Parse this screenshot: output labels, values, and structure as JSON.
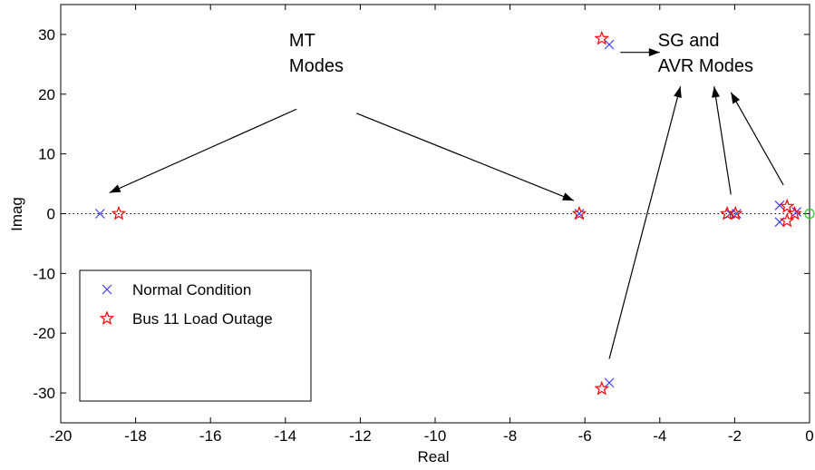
{
  "chart_data": {
    "type": "scatter",
    "title": "",
    "xlabel": "Real",
    "ylabel": "Imag",
    "xlim": [
      -20,
      0
    ],
    "ylim": [
      -35,
      35
    ],
    "xticks": [
      -20,
      -18,
      -16,
      -14,
      -12,
      -10,
      -8,
      -6,
      -4,
      -2,
      0
    ],
    "yticks": [
      -30,
      -20,
      -10,
      0,
      10,
      20,
      30
    ],
    "grid": false,
    "zero_line": "dotted",
    "legend": {
      "placement": "lower-left"
    },
    "series": [
      {
        "name": "Normal Condition",
        "marker": "x",
        "color": "#3b3bff",
        "points": [
          [
            -18.95,
            0
          ],
          [
            -6.15,
            0
          ],
          [
            -5.35,
            28.3
          ],
          [
            -5.35,
            -28.3
          ],
          [
            -2.12,
            0
          ],
          [
            -1.95,
            0
          ],
          [
            -0.8,
            1.4
          ],
          [
            -0.8,
            -1.4
          ],
          [
            -0.35,
            0.3
          ]
        ]
      },
      {
        "name": "Bus 11 Load Outage",
        "marker": "pentagram",
        "color": "#ff0000",
        "points": [
          [
            -18.45,
            0
          ],
          [
            -6.15,
            0
          ],
          [
            -5.55,
            29.3
          ],
          [
            -5.55,
            -29.3
          ],
          [
            -2.2,
            0
          ],
          [
            -1.98,
            0
          ],
          [
            -0.6,
            1.2
          ],
          [
            -0.6,
            -1.2
          ],
          [
            -0.4,
            0
          ]
        ]
      },
      {
        "name": "",
        "marker": "circle",
        "color": "#22cc22",
        "points": [
          [
            0,
            0
          ]
        ]
      }
    ],
    "annotations": [
      {
        "id": "mt",
        "lines": [
          "MT",
          "Modes"
        ],
        "at": [
          -13.9,
          28
        ],
        "arrows": [
          {
            "from": [
              -13.7,
              17.5
            ],
            "to": [
              -18.7,
              3.5
            ]
          },
          {
            "from": [
              -12.1,
              16.8
            ],
            "to": [
              -6.3,
              2.2
            ]
          }
        ]
      },
      {
        "id": "sg",
        "lines": [
          "SG and",
          "AVR Modes"
        ],
        "at": [
          -4.05,
          28
        ],
        "arrows": [
          {
            "from": [
              -5.05,
              27.0
            ],
            "to": [
              -4.0,
              27.0
            ]
          },
          {
            "from": [
              -5.35,
              -24.3
            ],
            "to": [
              -3.45,
              21.3
            ]
          },
          {
            "from": [
              -2.1,
              3.2
            ],
            "to": [
              -2.55,
              21.3
            ]
          },
          {
            "from": [
              -0.7,
              4.8
            ],
            "to": [
              -2.1,
              20.3
            ]
          }
        ]
      }
    ]
  }
}
